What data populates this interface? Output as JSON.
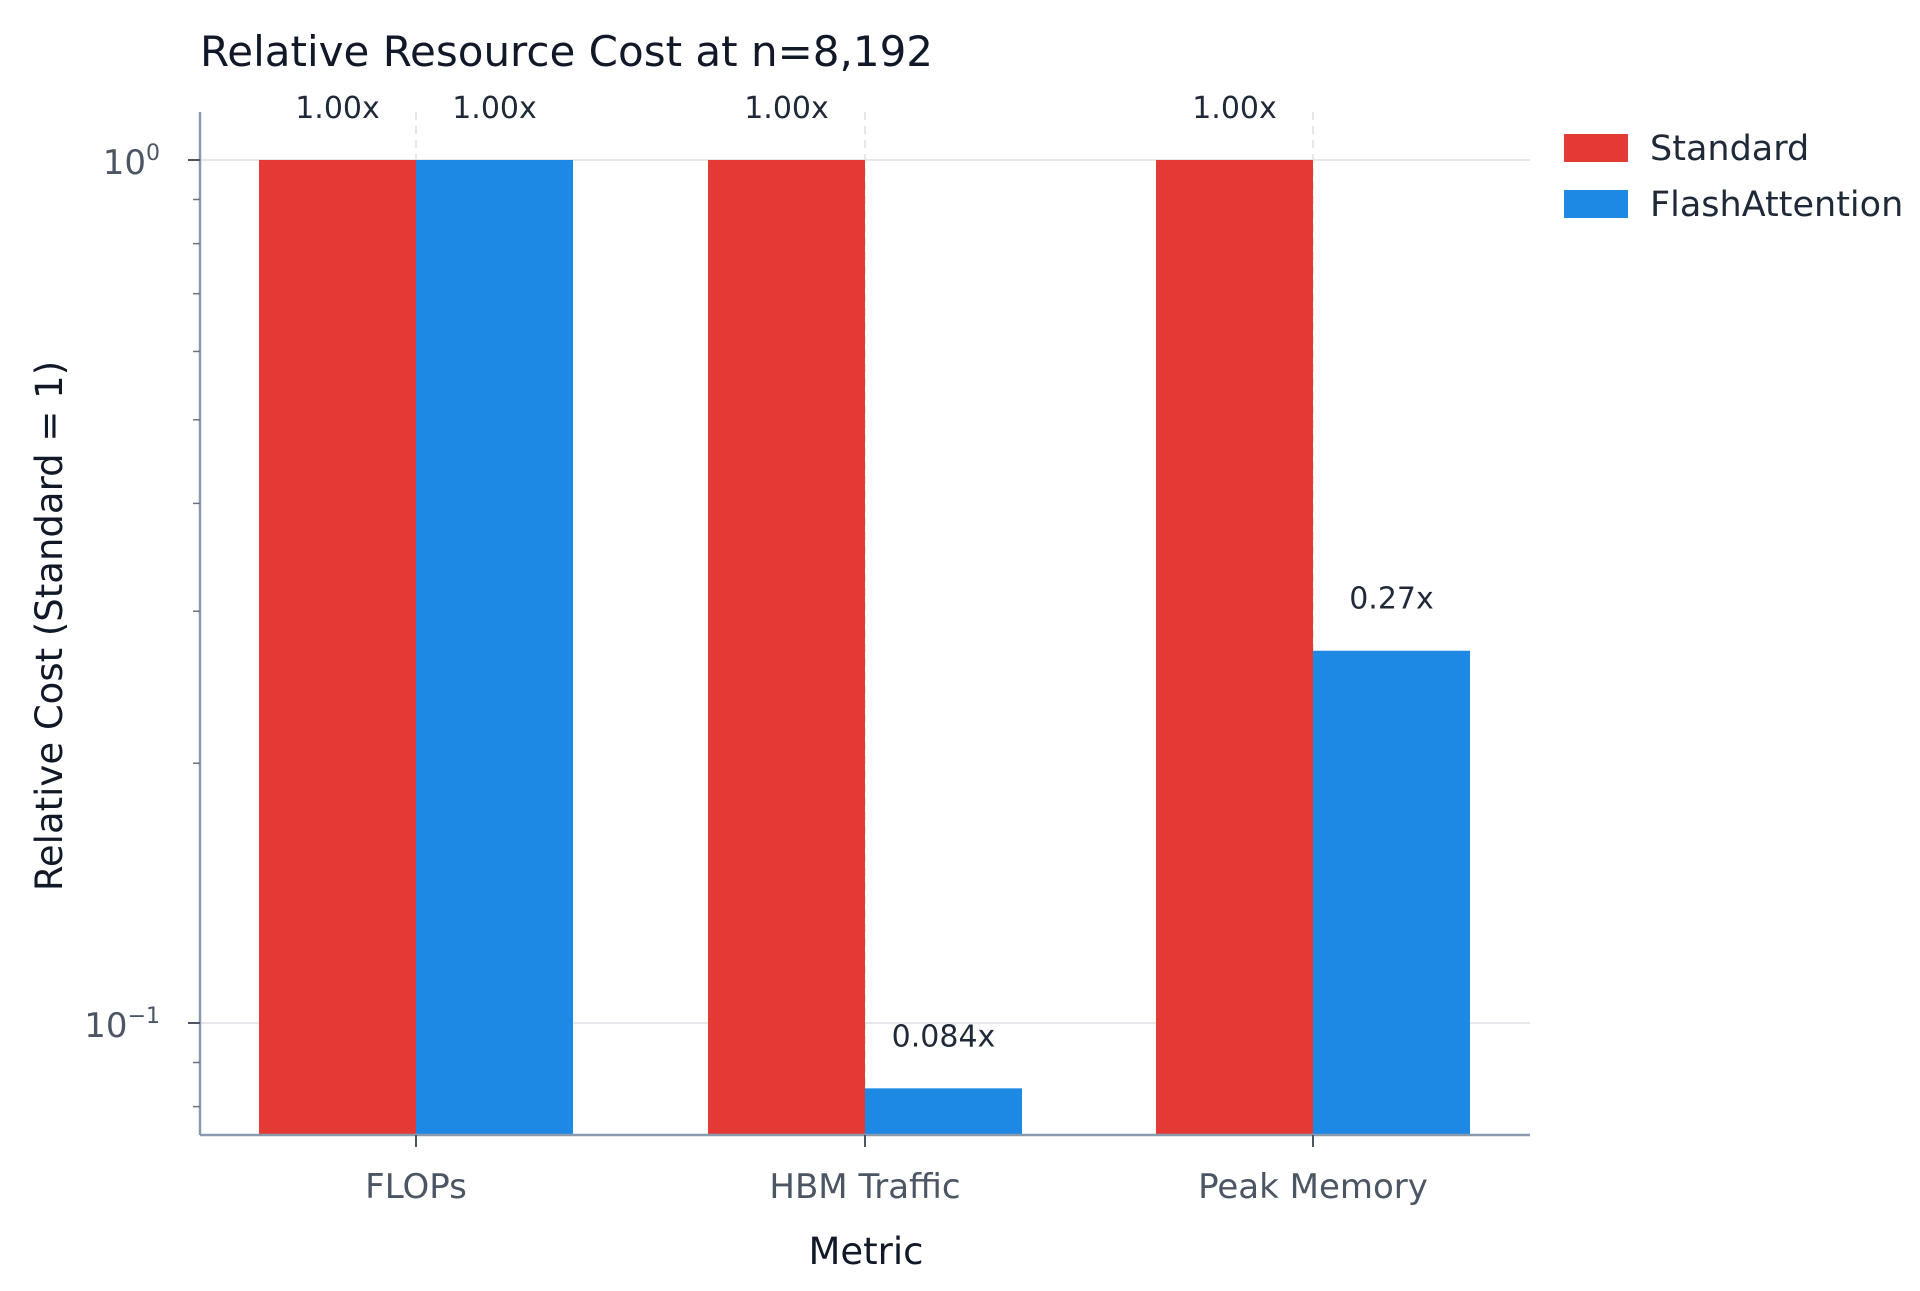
{
  "chart_data": {
    "type": "bar",
    "title": "Relative Resource Cost at n=8,192",
    "xlabel": "Metric",
    "ylabel": "Relative Cost (Standard = 1)",
    "y_scale": "log",
    "ylim": [
      0.0725,
      1.0
    ],
    "y_ticks": [
      {
        "value": 1.0,
        "base": "10",
        "exp": "0"
      },
      {
        "value": 0.1,
        "base": "10",
        "exp": "−1"
      }
    ],
    "categories": [
      "FLOPs",
      "HBM Traffic",
      "Peak Memory"
    ],
    "series": [
      {
        "name": "Standard",
        "color": "#e53935",
        "values": [
          1.0,
          1.0,
          1.0
        ],
        "labels": [
          "1.00x",
          "1.00x",
          "1.00x"
        ]
      },
      {
        "name": "FlashAttention",
        "color": "#1e88e5",
        "values": [
          1.0,
          0.084,
          0.27
        ],
        "labels": [
          "1.00x",
          "0.084x",
          "0.27x"
        ]
      }
    ],
    "grid": true,
    "legend_position": "top-right, outside plot"
  }
}
